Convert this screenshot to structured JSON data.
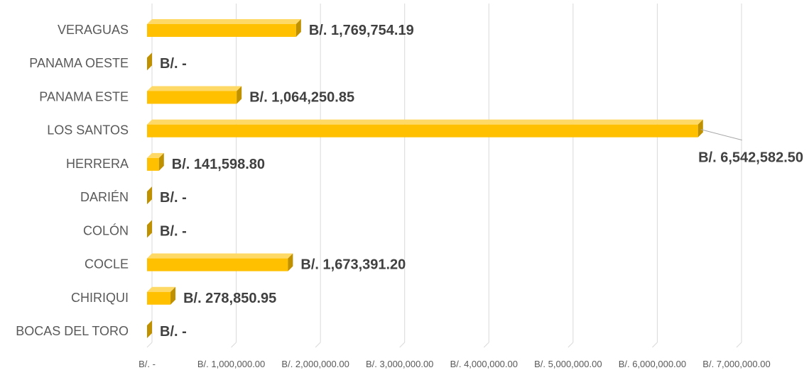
{
  "chart_data": {
    "type": "bar",
    "orientation": "horizontal",
    "style": "3d-bar",
    "categories": [
      "BOCAS DEL TORO",
      "CHIRIQUI",
      "COCLE",
      "COLÓN",
      "DARIÉN",
      "HERRERA",
      "LOS SANTOS",
      "PANAMA ESTE",
      "PANAMA OESTE",
      "VERAGUAS"
    ],
    "values": [
      0,
      278850.95,
      1673391.2,
      0,
      0,
      141598.8,
      6542582.5,
      1064250.85,
      0,
      1769754.19
    ],
    "data_labels": [
      "B/. -",
      "B/. 278,850.95",
      "B/. 1,673,391.20",
      "B/. -",
      "B/. -",
      "B/. 141,598.80",
      "B/. 6,542,582.50",
      "B/. 1,064,250.85",
      "B/. -",
      "B/. 1,769,754.19"
    ],
    "xlim": [
      0,
      7000000
    ],
    "xticks": [
      0,
      1000000,
      2000000,
      3000000,
      4000000,
      5000000,
      6000000,
      7000000
    ],
    "xtick_labels": [
      "B/. -",
      "B/. 1,000,000.00",
      "B/. 2,000,000.00",
      "B/. 3,000,000.00",
      "B/. 4,000,000.00",
      "B/. 5,000,000.00",
      "B/. 6,000,000.00",
      "B/. 7,000,000.00"
    ],
    "title": "",
    "xlabel": "",
    "ylabel": "",
    "grid": true,
    "legend": "none",
    "colors": {
      "bar_front": "#FFC000",
      "bar_top": "#FFD966",
      "bar_side": "#BF9000",
      "grid": "#D9D9D9",
      "text": "#595959",
      "label": "#404040"
    }
  }
}
